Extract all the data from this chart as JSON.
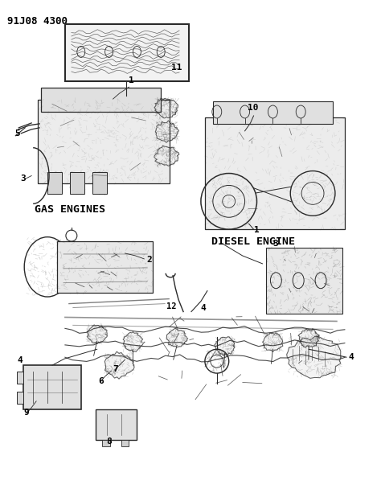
{
  "title": "91J08 4300",
  "background_color": "#ffffff",
  "line_color": "#2a2a2a",
  "text_color": "#000000",
  "gray_fill": "#d8d8d8",
  "dark_gray": "#888888",
  "figsize": [
    4.74,
    6.13
  ],
  "dpi": 100,
  "labels": {
    "gas_engines": "GAS ENGINES",
    "diesel_engine": "DIESEL ENGINE"
  }
}
